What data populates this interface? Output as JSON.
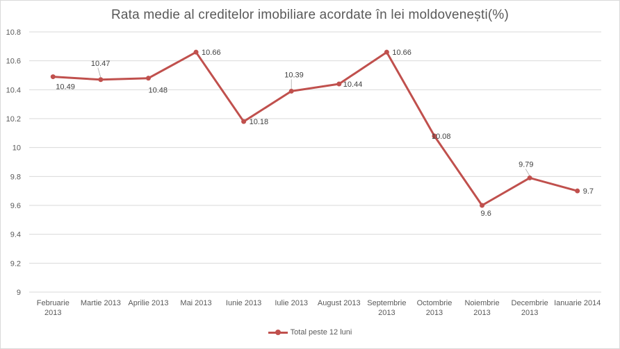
{
  "chart_data": {
    "type": "line",
    "title": "Rata medie al creditelor imobiliare acordate în lei moldovenești(%)",
    "xlabel": "",
    "ylabel": "",
    "ylim": [
      9,
      10.8
    ],
    "yticks": [
      "9",
      "9.2",
      "9.4",
      "9.6",
      "9.8",
      "10",
      "10.2",
      "10.4",
      "10.6",
      "10.8"
    ],
    "categories": [
      [
        "Februarie",
        "2013"
      ],
      [
        "Martie 2013"
      ],
      [
        "Aprilie 2013"
      ],
      [
        "Mai 2013"
      ],
      [
        "Iunie 2013"
      ],
      [
        "Iulie 2013"
      ],
      [
        "August 2013"
      ],
      [
        "Septembrie",
        "2013"
      ],
      [
        "Octombrie",
        "2013"
      ],
      [
        "Noiembrie",
        "2013"
      ],
      [
        "Decembrie",
        "2013"
      ],
      [
        "Ianuarie 2014"
      ]
    ],
    "series": [
      {
        "name": "Total peste 12 luni",
        "color": "#c0504d",
        "values": [
          10.49,
          10.47,
          10.48,
          10.66,
          10.18,
          10.39,
          10.44,
          10.66,
          10.08,
          9.6,
          9.79,
          9.7
        ],
        "labels": [
          "10.49",
          "10.47",
          "10.48",
          "10.66",
          "10.18",
          "10.39",
          "10.44",
          "10.66",
          "10.08",
          "9.6",
          "9.79",
          "9.7"
        ]
      }
    ],
    "grid": true,
    "legend_position": "bottom"
  },
  "colors": {
    "gridline": "#d9d9d9",
    "series": "#c0504d",
    "text": "#595959"
  }
}
